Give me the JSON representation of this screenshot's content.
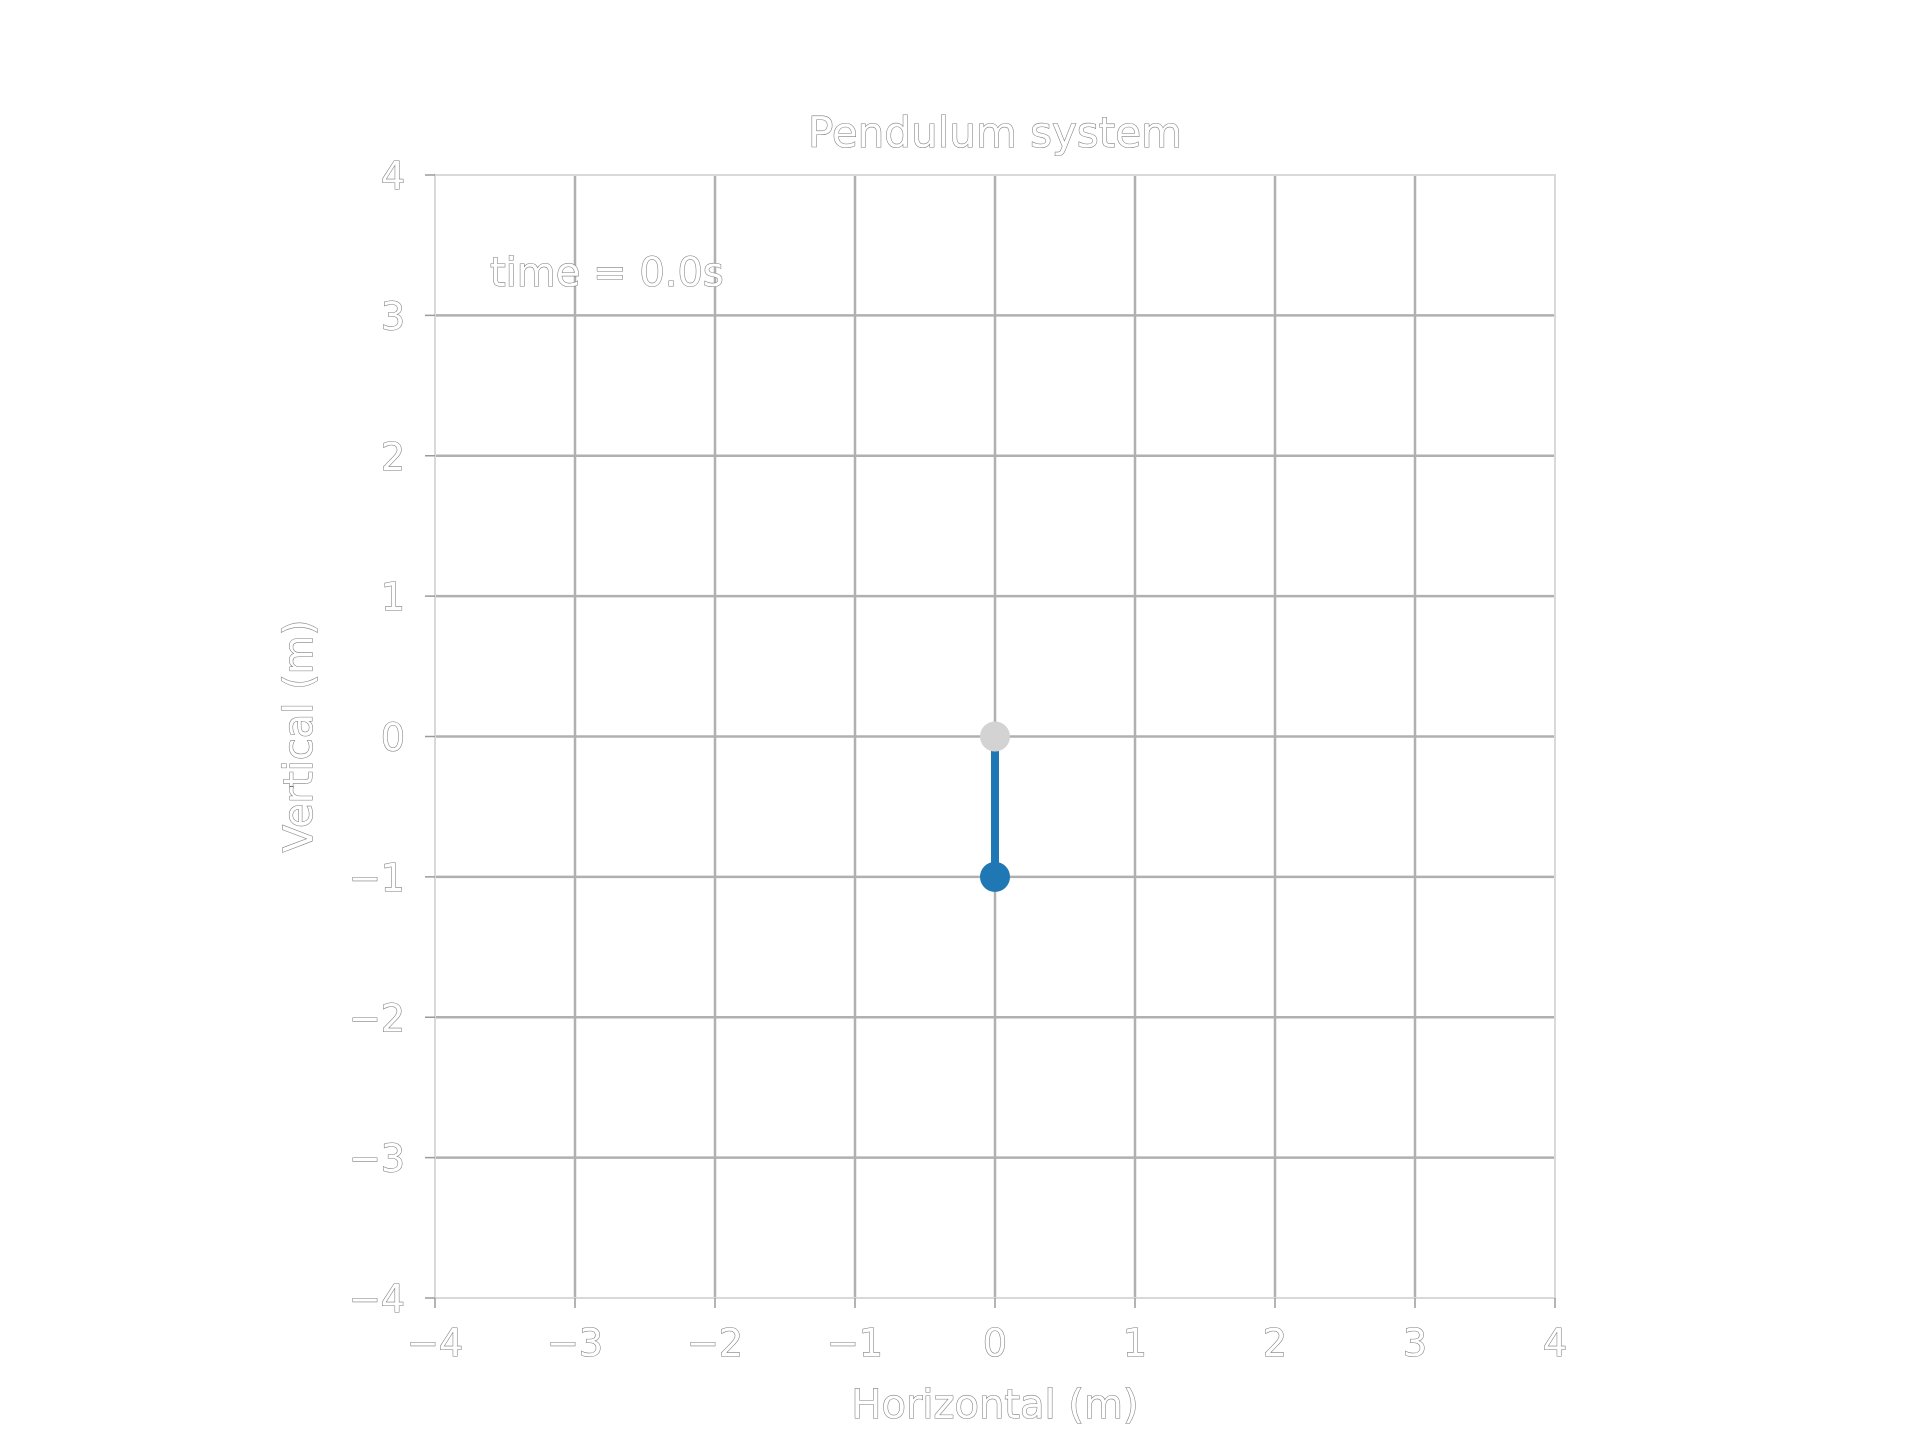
{
  "chart_data": {
    "type": "line",
    "title": "Pendulum system",
    "xlabel": "Horizontal (m)",
    "ylabel": "Vertical (m)",
    "xlim": [
      -4,
      4
    ],
    "ylim": [
      -4,
      4
    ],
    "xticks": [
      -4,
      -3,
      -2,
      -1,
      0,
      1,
      2,
      3,
      4
    ],
    "yticks": [
      -4,
      -3,
      -2,
      -1,
      0,
      1,
      2,
      3,
      4
    ],
    "xtick_labels": [
      "−4",
      "−3",
      "−2",
      "−1",
      "0",
      "1",
      "2",
      "3",
      "4"
    ],
    "ytick_labels": [
      "−4",
      "−3",
      "−2",
      "−1",
      "0",
      "1",
      "2",
      "3",
      "4"
    ],
    "grid": true,
    "annotation": "time = 0.0s",
    "pivot": {
      "x": 0,
      "y": 0
    },
    "bob": {
      "x": 0,
      "y": -1
    },
    "series": [
      {
        "x": [
          0,
          0
        ],
        "y": [
          0,
          -1
        ]
      }
    ],
    "colors": {
      "rod": "#1f77b4",
      "bob": "#1f77b4",
      "pivot": "#d3d3d3",
      "grid": "#b0b0b0",
      "frame": "#d9d9d9"
    }
  }
}
